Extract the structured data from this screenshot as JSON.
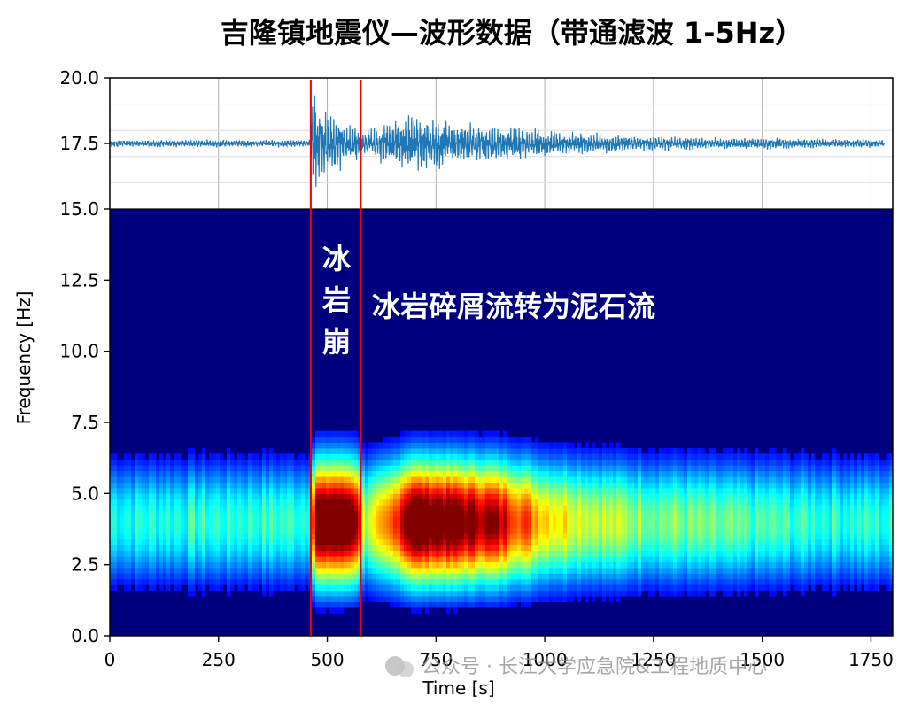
{
  "chart_data": {
    "title": "吉隆镇地震仪—波形数据（带通滤波 1-5Hz）",
    "xlabel": "Time [s]",
    "ylabel": "Frequency [Hz]",
    "xlim": [
      0,
      1800
    ],
    "x_ticks": [
      0,
      250,
      500,
      750,
      1000,
      1250,
      1500,
      1750
    ],
    "waveform": {
      "type": "line",
      "ylim": [
        15,
        20
      ],
      "y_ticks": [
        15.0,
        17.5,
        20.0
      ],
      "grid": true,
      "color": "#1f77b4",
      "baseline": 17.5,
      "envelope": [
        {
          "t": 0,
          "amp": 0.12
        },
        {
          "t": 460,
          "amp": 0.12
        },
        {
          "t": 465,
          "amp": 2.1
        },
        {
          "t": 480,
          "amp": 1.4
        },
        {
          "t": 520,
          "amp": 0.9
        },
        {
          "t": 560,
          "amp": 0.7
        },
        {
          "t": 580,
          "amp": 0.35
        },
        {
          "t": 620,
          "amp": 0.6
        },
        {
          "t": 680,
          "amp": 0.95
        },
        {
          "t": 760,
          "amp": 0.85
        },
        {
          "t": 900,
          "amp": 0.6
        },
        {
          "t": 1050,
          "amp": 0.38
        },
        {
          "t": 1300,
          "amp": 0.22
        },
        {
          "t": 1780,
          "amp": 0.14
        }
      ]
    },
    "spectrogram": {
      "type": "heatmap",
      "ylim": [
        0,
        15
      ],
      "y_ticks": [
        0.0,
        2.5,
        5.0,
        7.5,
        10.0,
        12.5,
        15.0
      ],
      "colormap": "jet",
      "energy": [
        {
          "t": 0,
          "e": 0.35
        },
        {
          "t": 455,
          "e": 0.38
        },
        {
          "t": 470,
          "e": 0.95
        },
        {
          "t": 510,
          "e": 1.0
        },
        {
          "t": 560,
          "e": 0.95
        },
        {
          "t": 585,
          "e": 0.45
        },
        {
          "t": 640,
          "e": 0.65
        },
        {
          "t": 690,
          "e": 1.0
        },
        {
          "t": 760,
          "e": 0.95
        },
        {
          "t": 880,
          "e": 0.85
        },
        {
          "t": 1000,
          "e": 0.6
        },
        {
          "t": 1150,
          "e": 0.48
        },
        {
          "t": 1400,
          "e": 0.4
        },
        {
          "t": 1790,
          "e": 0.35
        }
      ]
    },
    "markers": [
      {
        "x": 462,
        "color": "#e8000b"
      },
      {
        "x": 577,
        "color": "#e8000b"
      }
    ],
    "annotations": {
      "ice_rock_avalanche": [
        "冰",
        "岩",
        "崩"
      ],
      "debris_flow": "冰岩碎屑流转为泥石流"
    }
  },
  "watermark": "公众号 · 长江大学应急院&工程地质中心"
}
